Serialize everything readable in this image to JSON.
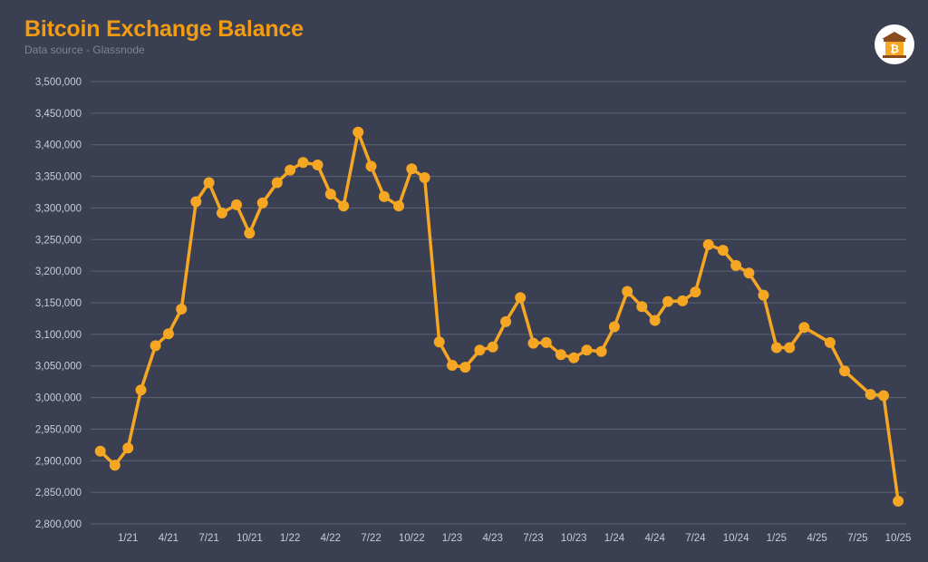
{
  "header": {
    "title": "Bitcoin Exchange Balance",
    "subtitle": "Data source - Glassnode"
  },
  "logo": {
    "icon": "bitcoin-bank-icon",
    "glyph": "₿"
  },
  "colors": {
    "background": "#3a3f52",
    "accent": "#f5a623",
    "title": "#f39c12",
    "grid": "#5c6275",
    "tick_text": "#c9ccd6"
  },
  "chart_data": {
    "type": "line",
    "title": "Bitcoin Exchange Balance",
    "subtitle": "Data source - Glassnode",
    "xlabel": "",
    "ylabel": "",
    "ylim": [
      2800000,
      3500000
    ],
    "yticks": [
      2800000,
      2850000,
      2900000,
      2950000,
      3000000,
      3050000,
      3100000,
      3150000,
      3200000,
      3250000,
      3300000,
      3350000,
      3400000,
      3450000,
      3500000
    ],
    "ytick_labels": [
      "2,800,000",
      "2,850,000",
      "2,900,000",
      "2,950,000",
      "3,000,000",
      "3,050,000",
      "3,100,000",
      "3,150,000",
      "3,200,000",
      "3,250,000",
      "3,300,000",
      "3,350,000",
      "3,400,000",
      "3,450,000",
      "3,500,000"
    ],
    "xlim": [
      2020.77,
      2025.8
    ],
    "xticks": [
      {
        "label": "1/21",
        "x": 2021.0
      },
      {
        "label": "4/21",
        "x": 2021.25
      },
      {
        "label": "7/21",
        "x": 2021.5
      },
      {
        "label": "10/21",
        "x": 2021.75
      },
      {
        "label": "1/22",
        "x": 2022.0
      },
      {
        "label": "4/22",
        "x": 2022.25
      },
      {
        "label": "7/22",
        "x": 2022.5
      },
      {
        "label": "10/22",
        "x": 2022.75
      },
      {
        "label": "1/23",
        "x": 2023.0
      },
      {
        "label": "4/23",
        "x": 2023.25
      },
      {
        "label": "7/23",
        "x": 2023.5
      },
      {
        "label": "10/23",
        "x": 2023.75
      },
      {
        "label": "1/24",
        "x": 2024.0
      },
      {
        "label": "4/24",
        "x": 2024.25
      },
      {
        "label": "7/24",
        "x": 2024.5
      },
      {
        "label": "10/24",
        "x": 2024.75
      },
      {
        "label": "1/25",
        "x": 2025.0
      },
      {
        "label": "4/25",
        "x": 2025.25
      },
      {
        "label": "7/25",
        "x": 2025.5
      },
      {
        "label": "10/25",
        "x": 2025.75
      }
    ],
    "grid": true,
    "legend": "none",
    "series": [
      {
        "color": "#f5a623",
        "points": [
          [
            2020.83,
            2915000
          ],
          [
            2020.92,
            2893000
          ],
          [
            2021.0,
            2920000
          ],
          [
            2021.08,
            3012000
          ],
          [
            2021.17,
            3082000
          ],
          [
            2021.25,
            3101000
          ],
          [
            2021.33,
            3140000
          ],
          [
            2021.42,
            3310000
          ],
          [
            2021.5,
            3340000
          ],
          [
            2021.58,
            3292000
          ],
          [
            2021.67,
            3305000
          ],
          [
            2021.75,
            3260000
          ],
          [
            2021.83,
            3308000
          ],
          [
            2021.92,
            3340000
          ],
          [
            2022.0,
            3360000
          ],
          [
            2022.08,
            3372000
          ],
          [
            2022.17,
            3368000
          ],
          [
            2022.25,
            3322000
          ],
          [
            2022.33,
            3303000
          ],
          [
            2022.42,
            3420000
          ],
          [
            2022.5,
            3366000
          ],
          [
            2022.58,
            3318000
          ],
          [
            2022.67,
            3303000
          ],
          [
            2022.75,
            3362000
          ],
          [
            2022.83,
            3348000
          ],
          [
            2022.92,
            3088000
          ],
          [
            2023.0,
            3051000
          ],
          [
            2023.08,
            3048000
          ],
          [
            2023.17,
            3075000
          ],
          [
            2023.25,
            3080000
          ],
          [
            2023.33,
            3120000
          ],
          [
            2023.42,
            3158000
          ],
          [
            2023.5,
            3086000
          ],
          [
            2023.58,
            3087000
          ],
          [
            2023.67,
            3068000
          ],
          [
            2023.75,
            3063000
          ],
          [
            2023.83,
            3075000
          ],
          [
            2023.92,
            3073000
          ],
          [
            2024.0,
            3112000
          ],
          [
            2024.08,
            3168000
          ],
          [
            2024.17,
            3144000
          ],
          [
            2024.25,
            3122000
          ],
          [
            2024.33,
            3152000
          ],
          [
            2024.42,
            3153000
          ],
          [
            2024.5,
            3167000
          ],
          [
            2024.58,
            3242000
          ],
          [
            2024.67,
            3233000
          ],
          [
            2024.75,
            3209000
          ],
          [
            2024.83,
            3197000
          ],
          [
            2024.92,
            3162000
          ],
          [
            2025.0,
            3079000
          ],
          [
            2025.08,
            3079000
          ],
          [
            2025.17,
            3111000
          ],
          [
            2025.33,
            3087000
          ],
          [
            2025.42,
            3042000
          ],
          [
            2025.58,
            3005000
          ],
          [
            2025.66,
            3003000
          ],
          [
            2025.75,
            2836000
          ]
        ]
      }
    ]
  }
}
